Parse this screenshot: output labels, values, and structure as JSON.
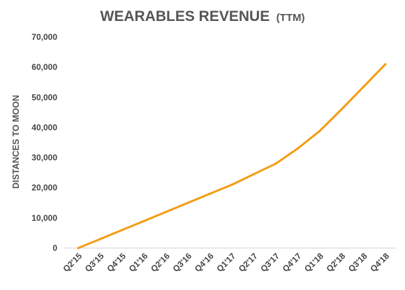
{
  "chart_data": {
    "type": "line",
    "title": "WEARABLES REVENUE",
    "title_suffix": "(TTM)",
    "xlabel": "",
    "ylabel": "DISTANCES TO MOON",
    "categories": [
      "Q2'15",
      "Q3'15",
      "Q4'15",
      "Q1'16",
      "Q2'16",
      "Q3'16",
      "Q4'16",
      "Q1'17",
      "Q2'17",
      "Q3'17",
      "Q4'17",
      "Q1'18",
      "Q2'18",
      "Q3'18",
      "Q4'18"
    ],
    "series": [
      {
        "values": [
          0,
          3000,
          6000,
          9000,
          12000,
          15000,
          18000,
          21000,
          24500,
          28000,
          33000,
          38800,
          46000,
          53500,
          61000
        ],
        "color": "#F39C12"
      }
    ],
    "ylim": [
      0,
      70000
    ],
    "y_ticks": [
      0,
      10000,
      20000,
      30000,
      40000,
      50000,
      60000,
      70000
    ],
    "y_tick_labels": [
      "0",
      "10,000",
      "20,000",
      "30,000",
      "40,000",
      "50,000",
      "60,000",
      "70,000"
    ],
    "grid": false,
    "legend": "none",
    "axis_color": "#d0d0d0"
  }
}
